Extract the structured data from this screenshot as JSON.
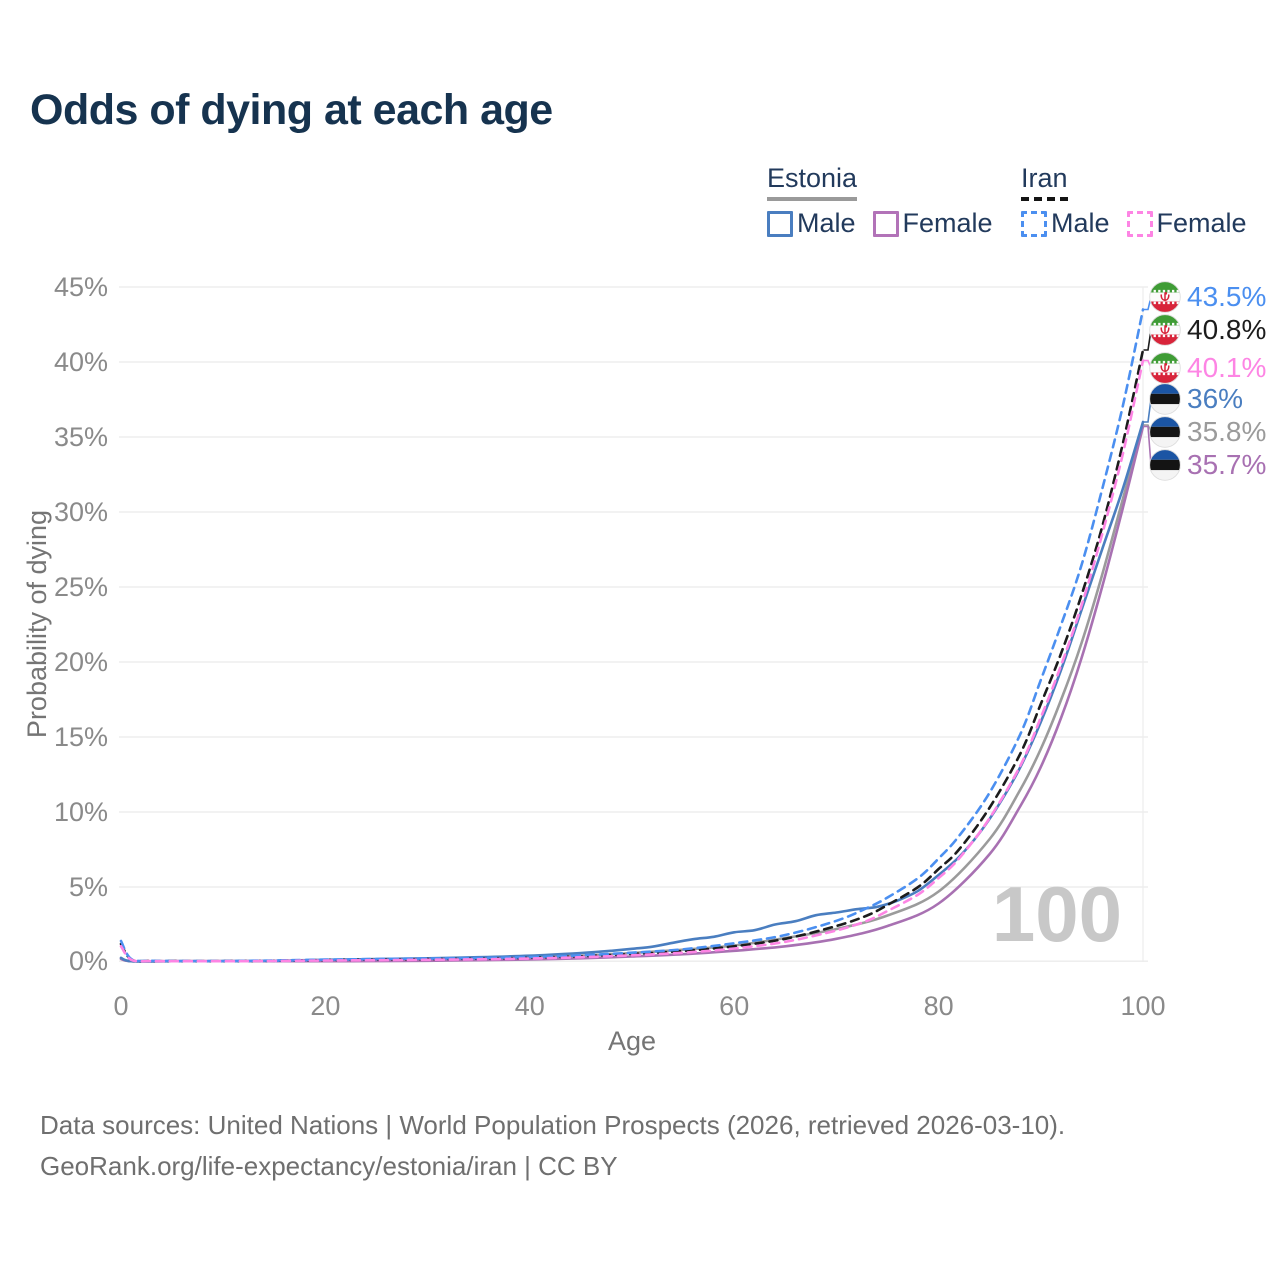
{
  "page": {
    "title": "Odds of dying at each age"
  },
  "legend": {
    "groups": [
      {
        "label": "Estonia",
        "line_style": "solid",
        "line_color": "#9a9a9a",
        "items": [
          {
            "label": "Male",
            "color": "#4a7ec0",
            "dashed": false
          },
          {
            "label": "Female",
            "color": "#b273b8",
            "dashed": false
          }
        ]
      },
      {
        "label": "Iran",
        "line_style": "dashed",
        "line_color": "#141414",
        "items": [
          {
            "label": "Male",
            "color": "#4b8ff0",
            "dashed": true
          },
          {
            "label": "Female",
            "color": "#fd85e4",
            "dashed": true
          }
        ]
      }
    ]
  },
  "chart_data": {
    "type": "line",
    "title": "Odds of dying at each age",
    "xlabel": "Age",
    "ylabel": "Probability of dying",
    "xlim": [
      0,
      100
    ],
    "ylim": [
      0,
      45
    ],
    "grid": "horizontal",
    "legend_position": "top-right",
    "watermark": "100",
    "xticks": [
      {
        "v": 0,
        "label": "0"
      },
      {
        "v": 20,
        "label": "20"
      },
      {
        "v": 40,
        "label": "40"
      },
      {
        "v": 60,
        "label": "60"
      },
      {
        "v": 80,
        "label": "80"
      },
      {
        "v": 100,
        "label": "100"
      }
    ],
    "yticks": [
      {
        "v": 0,
        "label": "0%"
      },
      {
        "v": 5,
        "label": "5%"
      },
      {
        "v": 10,
        "label": "10%"
      },
      {
        "v": 15,
        "label": "15%"
      },
      {
        "v": 20,
        "label": "20%"
      },
      {
        "v": 25,
        "label": "25%"
      },
      {
        "v": 30,
        "label": "30%"
      },
      {
        "v": 35,
        "label": "35%"
      },
      {
        "v": 40,
        "label": "40%"
      },
      {
        "v": 45,
        "label": "45%"
      }
    ],
    "series": [
      {
        "id": "iran-male",
        "name": "Iran Male",
        "country": "Iran",
        "flag": "iran",
        "color": "#4b8ff0",
        "dashed": true,
        "end_label": "43.5%",
        "x": [
          0,
          1,
          3,
          5,
          10,
          15,
          20,
          25,
          30,
          35,
          40,
          45,
          50,
          55,
          60,
          65,
          70,
          73,
          75,
          78,
          80,
          82,
          85,
          88,
          90,
          92,
          94,
          96,
          98,
          100
        ],
        "y": [
          1.4,
          0.2,
          0.08,
          0.07,
          0.07,
          0.1,
          0.16,
          0.2,
          0.23,
          0.27,
          0.33,
          0.45,
          0.62,
          0.85,
          1.25,
          1.8,
          2.75,
          3.6,
          4.3,
          5.6,
          6.9,
          8.4,
          11.3,
          15.2,
          18.8,
          22.5,
          26.5,
          31.5,
          37.0,
          43.5
        ]
      },
      {
        "id": "iran-both",
        "name": "Iran (both sexes)",
        "country": "Iran",
        "flag": "iran",
        "color": "#1c1c1c",
        "dashed": true,
        "end_label": "40.8%",
        "x": [
          0,
          1,
          3,
          5,
          10,
          15,
          20,
          25,
          30,
          35,
          40,
          45,
          50,
          55,
          60,
          65,
          70,
          73,
          75,
          78,
          80,
          82,
          85,
          88,
          90,
          92,
          94,
          96,
          98,
          100
        ],
        "y": [
          1.2,
          0.17,
          0.07,
          0.06,
          0.06,
          0.08,
          0.13,
          0.16,
          0.19,
          0.22,
          0.28,
          0.38,
          0.53,
          0.73,
          1.05,
          1.55,
          2.4,
          3.1,
          3.8,
          5.0,
          6.2,
          7.5,
          10.3,
          13.9,
          17.2,
          20.6,
          24.5,
          29.0,
          34.5,
          40.8
        ]
      },
      {
        "id": "iran-female",
        "name": "Iran Female",
        "country": "Iran",
        "flag": "iran",
        "color": "#fd85e4",
        "dashed": true,
        "end_label": "40.1%",
        "x": [
          0,
          1,
          3,
          5,
          10,
          15,
          20,
          25,
          30,
          35,
          40,
          45,
          50,
          55,
          60,
          65,
          70,
          73,
          75,
          78,
          80,
          82,
          85,
          88,
          90,
          92,
          94,
          96,
          98,
          100
        ],
        "y": [
          1.05,
          0.15,
          0.06,
          0.05,
          0.05,
          0.07,
          0.1,
          0.12,
          0.15,
          0.18,
          0.23,
          0.32,
          0.45,
          0.62,
          0.9,
          1.35,
          2.1,
          2.75,
          3.4,
          4.5,
          5.6,
          6.9,
          9.6,
          13.1,
          16.3,
          19.8,
          23.8,
          28.5,
          33.8,
          40.1
        ]
      },
      {
        "id": "estonia-male",
        "name": "Estonia Male",
        "country": "Estonia",
        "flag": "estonia",
        "color": "#4a7ec0",
        "dashed": false,
        "end_label": "36%",
        "x": [
          0,
          1,
          5,
          10,
          15,
          20,
          25,
          30,
          35,
          40,
          45,
          48,
          50,
          52,
          54,
          56,
          58,
          60,
          62,
          64,
          66,
          68,
          70,
          72,
          74,
          76,
          78,
          80,
          82,
          84,
          86,
          88,
          90,
          92,
          94,
          96,
          98,
          100
        ],
        "y": [
          0.28,
          0.04,
          0.03,
          0.03,
          0.08,
          0.15,
          0.2,
          0.25,
          0.32,
          0.42,
          0.6,
          0.75,
          0.88,
          1.02,
          1.28,
          1.52,
          1.68,
          1.98,
          2.12,
          2.5,
          2.72,
          3.12,
          3.3,
          3.52,
          3.68,
          4.1,
          4.75,
          5.8,
          7.0,
          8.6,
          10.6,
          13.0,
          16.0,
          19.5,
          23.5,
          27.5,
          31.5,
          36.0
        ]
      },
      {
        "id": "estonia-both",
        "name": "Estonia (both sexes)",
        "country": "Estonia",
        "flag": "estonia",
        "color": "#9b9b9b",
        "dashed": false,
        "end_label": "35.8%",
        "x": [
          0,
          1,
          5,
          10,
          15,
          20,
          25,
          30,
          35,
          40,
          45,
          50,
          55,
          60,
          65,
          70,
          75,
          80,
          85,
          88,
          90,
          92,
          94,
          96,
          98,
          100
        ],
        "y": [
          0.25,
          0.03,
          0.02,
          0.02,
          0.06,
          0.1,
          0.13,
          0.17,
          0.22,
          0.3,
          0.42,
          0.6,
          0.82,
          1.1,
          1.6,
          2.2,
          3.1,
          4.7,
          8.2,
          11.5,
          14.2,
          17.5,
          21.3,
          25.8,
          30.8,
          35.8
        ]
      },
      {
        "id": "estonia-female",
        "name": "Estonia Female",
        "country": "Estonia",
        "flag": "estonia",
        "color": "#a871b2",
        "dashed": false,
        "end_label": "35.7%",
        "x": [
          0,
          1,
          5,
          10,
          15,
          20,
          25,
          30,
          35,
          40,
          45,
          50,
          55,
          60,
          65,
          70,
          75,
          80,
          85,
          88,
          90,
          92,
          94,
          96,
          98,
          100
        ],
        "y": [
          0.2,
          0.025,
          0.015,
          0.015,
          0.04,
          0.05,
          0.06,
          0.08,
          0.12,
          0.17,
          0.25,
          0.37,
          0.52,
          0.75,
          1.05,
          1.55,
          2.4,
          3.9,
          7.2,
          10.4,
          13.0,
          16.3,
          20.3,
          25.0,
          30.2,
          35.7
        ]
      }
    ]
  },
  "footer": {
    "line1": "Data sources: United Nations | World Population Prospects (2026, retrieved 2026-03-10).",
    "line2": "GeoRank.org/life-expectancy/estonia/iran | CC BY"
  },
  "colors": {
    "title": "#16334f",
    "legend_text": "#223a5c",
    "tick_labels": "#8a8a8a",
    "axis_titles": "#757575",
    "gridline": "#ebebeb",
    "watermark": "#c8c8c8",
    "footer_text": "#6f6f6f"
  }
}
